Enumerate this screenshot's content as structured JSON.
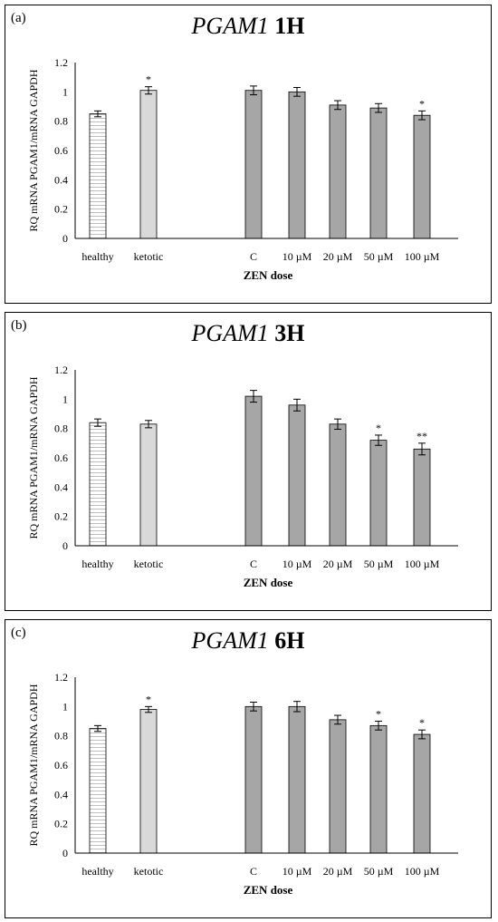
{
  "chart_data": [
    {
      "type": "bar",
      "panel_label": "(a)",
      "title_gene": "PGAM1",
      "title_time": "1H",
      "ylabel": "RQ mRNA PGAM1/mRNA GAPDH",
      "xlabel": "ZEN dose",
      "ylim": [
        0,
        1.2
      ],
      "yticks": [
        "0",
        "0.2",
        "0.4",
        "0.6",
        "0.8",
        "1",
        "1.2"
      ],
      "categories": [
        "healthy",
        "ketotic",
        "C",
        "10 µM",
        "20 µM",
        "50 µM",
        "100 µM"
      ],
      "values": [
        0.85,
        1.01,
        1.01,
        1.0,
        0.91,
        0.89,
        0.84
      ],
      "errors": [
        0.02,
        0.025,
        0.03,
        0.03,
        0.03,
        0.03,
        0.03
      ],
      "significance": [
        "",
        "*",
        "",
        "",
        "",
        "",
        "*"
      ],
      "bar_styles": [
        "striped",
        "light",
        "dark",
        "dark",
        "dark",
        "dark",
        "dark"
      ],
      "colors": {
        "light": "#d9d9d9",
        "dark": "#a6a6a6",
        "stripe": "#bfbfbf"
      },
      "grid": false,
      "legend": "none"
    },
    {
      "type": "bar",
      "panel_label": "(b)",
      "title_gene": "PGAM1",
      "title_time": "3H",
      "ylabel": "RQ mRNA PGAM1/mRNA GAPDH",
      "xlabel": "ZEN dose",
      "ylim": [
        0,
        1.2
      ],
      "yticks": [
        "0",
        "0.2",
        "0.4",
        "0.6",
        "0.8",
        "1",
        "1.2"
      ],
      "categories": [
        "healthy",
        "ketotic",
        "C",
        "10 µM",
        "20 µM",
        "50 µM",
        "100 µM"
      ],
      "values": [
        0.84,
        0.83,
        1.02,
        0.96,
        0.83,
        0.72,
        0.66
      ],
      "errors": [
        0.025,
        0.025,
        0.04,
        0.04,
        0.035,
        0.035,
        0.04
      ],
      "significance": [
        "",
        "",
        "",
        "",
        "",
        "*",
        "**"
      ],
      "bar_styles": [
        "striped",
        "light",
        "dark",
        "dark",
        "dark",
        "dark",
        "dark"
      ],
      "colors": {
        "light": "#d9d9d9",
        "dark": "#a6a6a6",
        "stripe": "#bfbfbf"
      },
      "grid": false,
      "legend": "none"
    },
    {
      "type": "bar",
      "panel_label": "(c)",
      "title_gene": "PGAM1",
      "title_time": "6H",
      "ylabel": "RQ mRNA PGAM1/mRNA GAPDH",
      "xlabel": "ZEN dose",
      "ylim": [
        0,
        1.2
      ],
      "yticks": [
        "0",
        "0.2",
        "0.4",
        "0.6",
        "0.8",
        "1",
        "1.2"
      ],
      "categories": [
        "healthy",
        "ketotic",
        "C",
        "10 µM",
        "20 µM",
        "50 µM",
        "100 µM"
      ],
      "values": [
        0.85,
        0.98,
        1.0,
        1.0,
        0.91,
        0.87,
        0.81
      ],
      "errors": [
        0.02,
        0.02,
        0.03,
        0.035,
        0.03,
        0.03,
        0.03
      ],
      "significance": [
        "",
        "*",
        "",
        "",
        "",
        "*",
        "*"
      ],
      "bar_styles": [
        "striped",
        "light",
        "dark",
        "dark",
        "dark",
        "dark",
        "dark"
      ],
      "colors": {
        "light": "#d9d9d9",
        "dark": "#a6a6a6",
        "stripe": "#bfbfbf"
      },
      "grid": false,
      "legend": "none"
    }
  ]
}
